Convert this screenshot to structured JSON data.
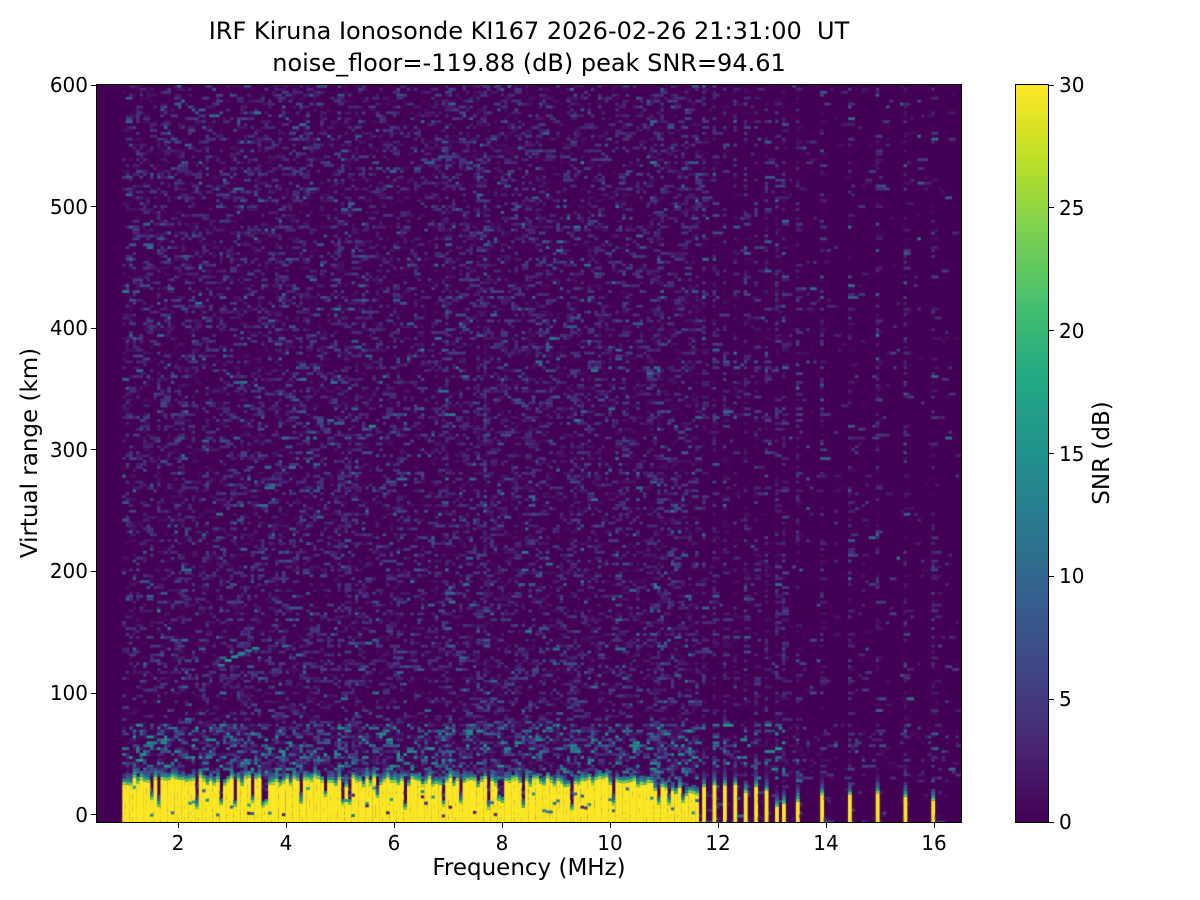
{
  "chart_data": {
    "type": "heatmap",
    "title": "IRF Kiruna Ionosonde KI167 2026-02-26 21:31:00  UT",
    "subtitle": "noise_floor=-119.88 (dB) peak SNR=94.61",
    "station_id": "KI167",
    "datetime_ut": "2026-02-26 21:31:00 UT",
    "noise_floor_db": -119.88,
    "peak_snr_db": 94.61,
    "xlabel": "Frequency (MHz)",
    "ylabel": "Virtual range (km)",
    "x_ticks": [
      2,
      4,
      6,
      8,
      10,
      12,
      14,
      16
    ],
    "y_ticks": [
      0,
      100,
      200,
      300,
      400,
      500,
      600
    ],
    "xlim_mhz": [
      0.5,
      16.5
    ],
    "ylim_km": [
      -6,
      600
    ],
    "grid": false,
    "colorbar": {
      "label": "SNR (dB)",
      "ticks": [
        0,
        5,
        10,
        15,
        20,
        25,
        30
      ],
      "range": [
        0,
        30
      ],
      "colormap": "viridis",
      "position": "right"
    },
    "colormap_stops": [
      "#440154",
      "#482475",
      "#414487",
      "#355f8d",
      "#2a788e",
      "#21918c",
      "#22a884",
      "#44bf70",
      "#7ad151",
      "#bddf26",
      "#fde725"
    ],
    "content": {
      "background_snr_db": 0,
      "sweep_start_mhz": 1.0,
      "sweep_end_mhz": 16.45,
      "ground_clutter_band": {
        "freq_range_mhz": [
          1.0,
          11.66
        ],
        "top_km_approx": 27,
        "snr_db": 30,
        "notch_freqs_mhz": [
          1.67,
          2.37,
          3.05,
          3.6,
          3.66,
          4.3,
          5.05,
          6.22,
          7.26,
          7.74,
          8.37,
          9.3,
          10.07,
          10.9
        ]
      },
      "dense_stripe_freqs_mhz": [
        11.76,
        11.94,
        12.13,
        12.31,
        12.5,
        12.69,
        12.87,
        13.06,
        13.24
      ],
      "sparse_stripe_freqs_mhz": [
        13.46,
        13.94,
        14.44,
        14.96,
        15.46,
        15.98
      ],
      "intermediate_weak_columns_mhz": [
        13.7,
        14.19,
        14.7,
        15.21,
        15.72
      ],
      "diagonal_echo_dashes": [
        [
          2.8,
          124,
          12
        ],
        [
          2.93,
          128,
          16
        ],
        [
          3.05,
          131,
          15
        ],
        [
          3.18,
          134,
          13
        ],
        [
          3.31,
          136,
          12
        ],
        [
          3.44,
          138,
          14
        ]
      ],
      "enhanced_noise_column_mhz": 3.83,
      "noise_enhanced_km_range": [
        28,
        75
      ]
    }
  }
}
